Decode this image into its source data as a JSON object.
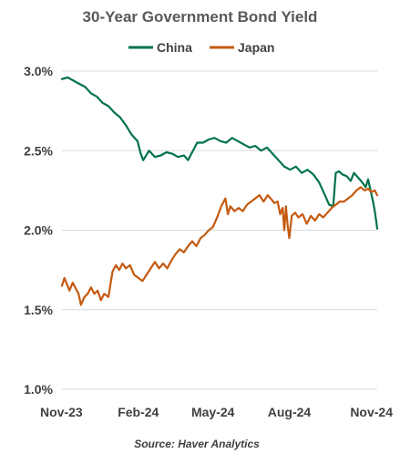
{
  "chart_data": {
    "type": "line",
    "title": "30-Year Government Bond Yield",
    "source": "Source: Haver Analytics",
    "xlabel": "",
    "ylabel": "",
    "x_tick_labels": [
      "Nov-23",
      "Feb-24",
      "May-24",
      "Aug-24",
      "Nov-24"
    ],
    "x_tick_dates": [
      "2023-11-01",
      "2024-02-01",
      "2024-05-01",
      "2024-08-01",
      "2024-11-01"
    ],
    "xlim": [
      "2023-11-01",
      "2024-11-15"
    ],
    "y_tick_labels": [
      "1.0%",
      "1.5%",
      "2.0%",
      "2.5%",
      "3.0%"
    ],
    "y_ticks": [
      1.0,
      1.5,
      2.0,
      2.5,
      3.0
    ],
    "ylim": [
      1.0,
      3.0
    ],
    "grid": true,
    "legend": "top",
    "series": [
      {
        "name": "China",
        "color": "#00734a",
        "points": [
          [
            "2023-11-01",
            2.95
          ],
          [
            "2023-11-08",
            2.96
          ],
          [
            "2023-11-15",
            2.94
          ],
          [
            "2023-11-22",
            2.92
          ],
          [
            "2023-11-29",
            2.9
          ],
          [
            "2023-12-06",
            2.86
          ],
          [
            "2023-12-13",
            2.84
          ],
          [
            "2023-12-20",
            2.8
          ],
          [
            "2023-12-27",
            2.78
          ],
          [
            "2024-01-03",
            2.74
          ],
          [
            "2024-01-10",
            2.71
          ],
          [
            "2024-01-17",
            2.66
          ],
          [
            "2024-01-24",
            2.6
          ],
          [
            "2024-01-31",
            2.56
          ],
          [
            "2024-02-04",
            2.48
          ],
          [
            "2024-02-07",
            2.44
          ],
          [
            "2024-02-14",
            2.5
          ],
          [
            "2024-02-21",
            2.46
          ],
          [
            "2024-02-28",
            2.47
          ],
          [
            "2024-03-06",
            2.49
          ],
          [
            "2024-03-13",
            2.48
          ],
          [
            "2024-03-20",
            2.46
          ],
          [
            "2024-03-27",
            2.47
          ],
          [
            "2024-04-01",
            2.44
          ],
          [
            "2024-04-05",
            2.48
          ],
          [
            "2024-04-12",
            2.55
          ],
          [
            "2024-04-19",
            2.55
          ],
          [
            "2024-04-26",
            2.57
          ],
          [
            "2024-05-03",
            2.58
          ],
          [
            "2024-05-10",
            2.56
          ],
          [
            "2024-05-17",
            2.55
          ],
          [
            "2024-05-24",
            2.58
          ],
          [
            "2024-05-31",
            2.56
          ],
          [
            "2024-06-07",
            2.54
          ],
          [
            "2024-06-14",
            2.52
          ],
          [
            "2024-06-21",
            2.53
          ],
          [
            "2024-06-28",
            2.5
          ],
          [
            "2024-07-05",
            2.52
          ],
          [
            "2024-07-12",
            2.48
          ],
          [
            "2024-07-19",
            2.44
          ],
          [
            "2024-07-26",
            2.4
          ],
          [
            "2024-08-02",
            2.38
          ],
          [
            "2024-08-09",
            2.4
          ],
          [
            "2024-08-16",
            2.36
          ],
          [
            "2024-08-23",
            2.38
          ],
          [
            "2024-08-30",
            2.35
          ],
          [
            "2024-09-06",
            2.3
          ],
          [
            "2024-09-13",
            2.22
          ],
          [
            "2024-09-18",
            2.16
          ],
          [
            "2024-09-23",
            2.15
          ],
          [
            "2024-09-26",
            2.36
          ],
          [
            "2024-09-30",
            2.37
          ],
          [
            "2024-10-04",
            2.35
          ],
          [
            "2024-10-09",
            2.34
          ],
          [
            "2024-10-14",
            2.31
          ],
          [
            "2024-10-18",
            2.36
          ],
          [
            "2024-10-23",
            2.33
          ],
          [
            "2024-10-28",
            2.3
          ],
          [
            "2024-11-01",
            2.27
          ],
          [
            "2024-11-04",
            2.32
          ],
          [
            "2024-11-07",
            2.25
          ],
          [
            "2024-11-10",
            2.18
          ],
          [
            "2024-11-12",
            2.12
          ],
          [
            "2024-11-14",
            2.05
          ],
          [
            "2024-11-15",
            2.01
          ]
        ]
      },
      {
        "name": "Japan",
        "color": "#c55a11",
        "points": [
          [
            "2023-11-01",
            1.65
          ],
          [
            "2023-11-04",
            1.7
          ],
          [
            "2023-11-07",
            1.66
          ],
          [
            "2023-11-10",
            1.62
          ],
          [
            "2023-11-14",
            1.67
          ],
          [
            "2023-11-18",
            1.63
          ],
          [
            "2023-11-21",
            1.6
          ],
          [
            "2023-11-24",
            1.53
          ],
          [
            "2023-11-28",
            1.58
          ],
          [
            "2023-12-02",
            1.6
          ],
          [
            "2023-12-06",
            1.64
          ],
          [
            "2023-12-10",
            1.6
          ],
          [
            "2023-12-14",
            1.62
          ],
          [
            "2023-12-18",
            1.56
          ],
          [
            "2023-12-22",
            1.6
          ],
          [
            "2023-12-27",
            1.58
          ],
          [
            "2024-01-01",
            1.74
          ],
          [
            "2024-01-05",
            1.78
          ],
          [
            "2024-01-09",
            1.75
          ],
          [
            "2024-01-13",
            1.79
          ],
          [
            "2024-01-17",
            1.76
          ],
          [
            "2024-01-22",
            1.78
          ],
          [
            "2024-01-27",
            1.72
          ],
          [
            "2024-02-01",
            1.7
          ],
          [
            "2024-02-06",
            1.68
          ],
          [
            "2024-02-11",
            1.72
          ],
          [
            "2024-02-16",
            1.76
          ],
          [
            "2024-02-21",
            1.8
          ],
          [
            "2024-02-26",
            1.76
          ],
          [
            "2024-03-02",
            1.79
          ],
          [
            "2024-03-07",
            1.76
          ],
          [
            "2024-03-12",
            1.81
          ],
          [
            "2024-03-17",
            1.85
          ],
          [
            "2024-03-22",
            1.88
          ],
          [
            "2024-03-27",
            1.86
          ],
          [
            "2024-04-01",
            1.9
          ],
          [
            "2024-04-06",
            1.93
          ],
          [
            "2024-04-11",
            1.9
          ],
          [
            "2024-04-16",
            1.95
          ],
          [
            "2024-04-21",
            1.97
          ],
          [
            "2024-04-26",
            2.0
          ],
          [
            "2024-05-01",
            2.02
          ],
          [
            "2024-05-06",
            2.08
          ],
          [
            "2024-05-11",
            2.15
          ],
          [
            "2024-05-16",
            2.2
          ],
          [
            "2024-05-19",
            2.1
          ],
          [
            "2024-05-22",
            2.15
          ],
          [
            "2024-05-27",
            2.12
          ],
          [
            "2024-06-01",
            2.14
          ],
          [
            "2024-06-06",
            2.12
          ],
          [
            "2024-06-11",
            2.16
          ],
          [
            "2024-06-16",
            2.18
          ],
          [
            "2024-06-21",
            2.2
          ],
          [
            "2024-06-26",
            2.22
          ],
          [
            "2024-07-01",
            2.18
          ],
          [
            "2024-07-06",
            2.22
          ],
          [
            "2024-07-11",
            2.19
          ],
          [
            "2024-07-14",
            2.17
          ],
          [
            "2024-07-18",
            2.18
          ],
          [
            "2024-07-21",
            2.1
          ],
          [
            "2024-07-24",
            2.14
          ],
          [
            "2024-07-26",
            2.0
          ],
          [
            "2024-07-28",
            2.15
          ],
          [
            "2024-07-30",
            2.03
          ],
          [
            "2024-08-01",
            1.95
          ],
          [
            "2024-08-04",
            2.09
          ],
          [
            "2024-08-08",
            2.11
          ],
          [
            "2024-08-12",
            2.08
          ],
          [
            "2024-08-17",
            2.1
          ],
          [
            "2024-08-22",
            2.04
          ],
          [
            "2024-08-27",
            2.09
          ],
          [
            "2024-09-01",
            2.06
          ],
          [
            "2024-09-06",
            2.1
          ],
          [
            "2024-09-11",
            2.08
          ],
          [
            "2024-09-16",
            2.11
          ],
          [
            "2024-09-21",
            2.14
          ],
          [
            "2024-09-26",
            2.16
          ],
          [
            "2024-10-01",
            2.18
          ],
          [
            "2024-10-06",
            2.18
          ],
          [
            "2024-10-11",
            2.2
          ],
          [
            "2024-10-16",
            2.22
          ],
          [
            "2024-10-21",
            2.25
          ],
          [
            "2024-10-26",
            2.27
          ],
          [
            "2024-10-31",
            2.25
          ],
          [
            "2024-11-04",
            2.26
          ],
          [
            "2024-11-08",
            2.24
          ],
          [
            "2024-11-12",
            2.25
          ],
          [
            "2024-11-15",
            2.22
          ]
        ]
      }
    ]
  }
}
